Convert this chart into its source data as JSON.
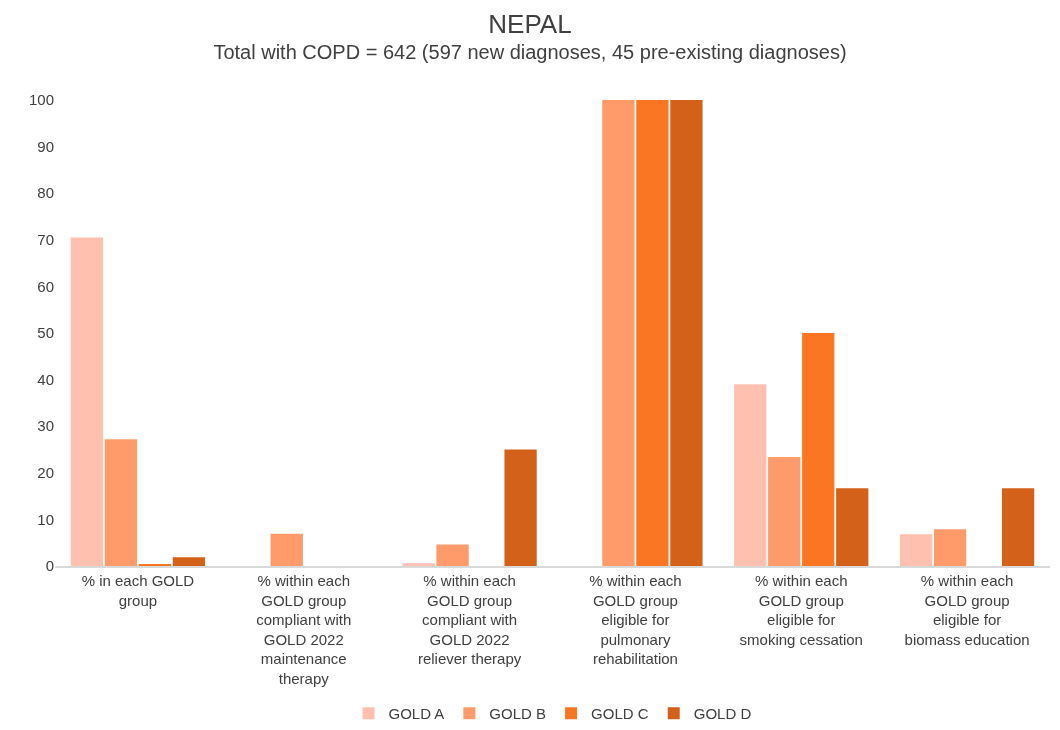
{
  "chart_data": {
    "type": "bar",
    "title": "NEPAL",
    "subtitle": "Total with COPD = 642 (597 new diagnoses, 45 pre-existing diagnoses)",
    "categories": [
      "% in each GOLD group",
      "% within each GOLD group compliant with GOLD 2022 maintenance therapy",
      "% within each GOLD group compliant with GOLD 2022 reliever therapy",
      "% within each GOLD group eligible for pulmonary rehabilitation",
      "% within each GOLD group eligible for smoking cessation",
      "% within each GOLD group eligible for biomass education"
    ],
    "series": [
      {
        "name": "GOLD A",
        "color": "#ffc0b0",
        "values": [
          70.5,
          0,
          0.6,
          0,
          39,
          6.8
        ]
      },
      {
        "name": "GOLD B",
        "color": "#ff9a6a",
        "values": [
          27.2,
          6.9,
          4.6,
          100,
          23.4,
          7.9
        ]
      },
      {
        "name": "GOLD C",
        "color": "#fb7622",
        "values": [
          0.3,
          0,
          0,
          100,
          50,
          0
        ]
      },
      {
        "name": "GOLD D",
        "color": "#d4611a",
        "values": [
          1.9,
          0,
          25,
          100,
          16.7,
          16.7
        ]
      }
    ],
    "ylim": [
      0,
      100
    ],
    "yticks": [
      0,
      10,
      20,
      30,
      40,
      50,
      60,
      70,
      80,
      90,
      100
    ],
    "grid": false,
    "legend": "bottom"
  }
}
